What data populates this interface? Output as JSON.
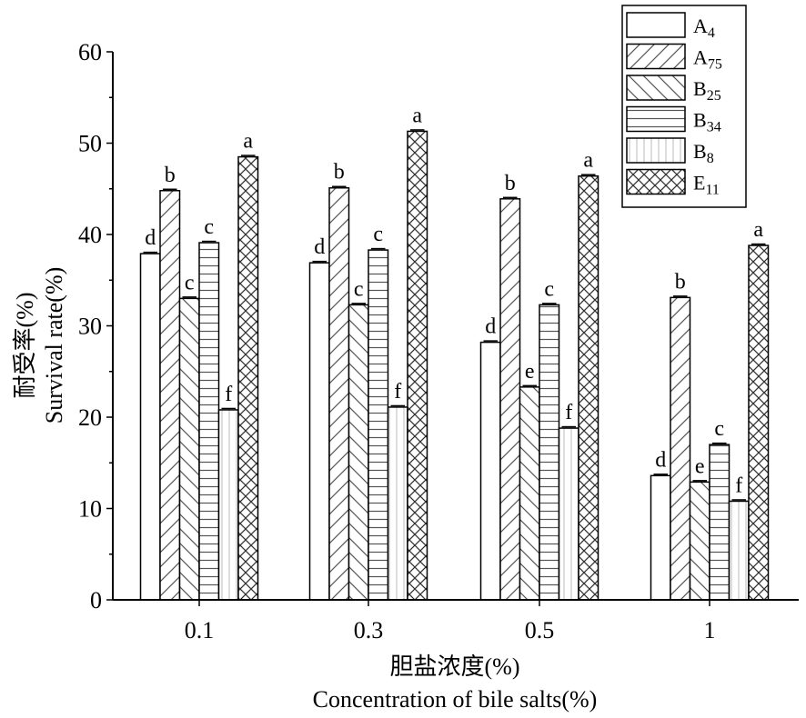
{
  "chart_data": {
    "type": "bar",
    "categories": [
      "0.1",
      "0.3",
      "0.5",
      "1"
    ],
    "series": [
      {
        "name": "A4",
        "legend_main": "A",
        "legend_sub": "4",
        "pattern": "plain",
        "values": [
          37.9,
          36.9,
          28.2,
          13.6
        ],
        "labels": [
          "d",
          "d",
          "d",
          "d"
        ]
      },
      {
        "name": "A75",
        "legend_main": "A",
        "legend_sub": "75",
        "pattern": "diag-right",
        "values": [
          44.8,
          45.1,
          43.9,
          33.1
        ],
        "labels": [
          "b",
          "b",
          "b",
          "b"
        ]
      },
      {
        "name": "B25",
        "legend_main": "B",
        "legend_sub": "25",
        "pattern": "diag-left",
        "values": [
          33.0,
          32.3,
          23.3,
          12.9
        ],
        "labels": [
          "c",
          "c",
          "e",
          "e"
        ]
      },
      {
        "name": "B34",
        "legend_main": "B",
        "legend_sub": "34",
        "pattern": "horizontal",
        "values": [
          39.1,
          38.3,
          32.3,
          17.0
        ],
        "labels": [
          "c",
          "c",
          "c",
          "c"
        ]
      },
      {
        "name": "B8",
        "legend_main": "B",
        "legend_sub": "8",
        "pattern": "vertical",
        "values": [
          20.8,
          21.1,
          18.8,
          10.8
        ],
        "labels": [
          "f",
          "f",
          "f",
          "f"
        ]
      },
      {
        "name": "E11",
        "legend_main": "E",
        "legend_sub": "11",
        "pattern": "cross",
        "values": [
          48.5,
          51.3,
          46.4,
          38.8
        ],
        "labels": [
          "a",
          "a",
          "a",
          "a"
        ]
      }
    ],
    "ylabel_cn": "耐受率(%)",
    "ylabel_en": "Survival rate(%)",
    "xlabel_cn": "胆盐浓度(%)",
    "xlabel_en": "Concentration of bile salts(%)",
    "ylim": [
      0,
      60
    ],
    "yticks": [
      "0",
      "10",
      "20",
      "30",
      "40",
      "50",
      "60"
    ],
    "legend_position": "top-right",
    "grid": false
  }
}
